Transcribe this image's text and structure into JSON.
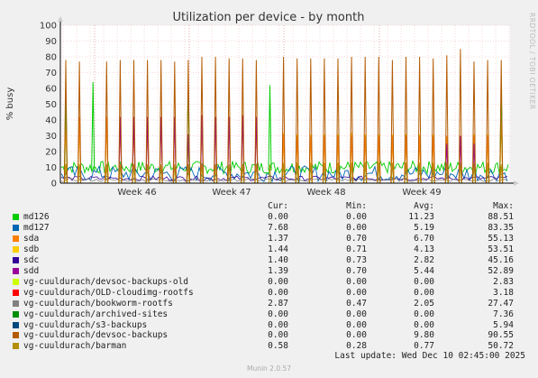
{
  "chart_data": {
    "type": "line",
    "title": "Utilization per device - by month",
    "ylabel": "% busy",
    "xlabel": "",
    "ylim": [
      0,
      100
    ],
    "yticks": [
      0,
      10,
      20,
      30,
      40,
      50,
      60,
      70,
      80,
      90,
      100
    ],
    "xticks": [
      "Week 46",
      "Week 47",
      "Week 48",
      "Week 49"
    ],
    "grid": true,
    "legend_position": "bottom",
    "series": [
      {
        "name": "md126",
        "color": "#00cc00",
        "cur": "0.00",
        "min": "0.00",
        "avg": "11.23",
        "max": "88.51"
      },
      {
        "name": "md127",
        "color": "#0066b3",
        "cur": "7.68",
        "min": "0.00",
        "avg": "5.19",
        "max": "83.35"
      },
      {
        "name": "sda",
        "color": "#ff8000",
        "cur": "1.37",
        "min": "0.70",
        "avg": "6.70",
        "max": "55.13"
      },
      {
        "name": "sdb",
        "color": "#ffcc00",
        "cur": "1.44",
        "min": "0.71",
        "avg": "4.13",
        "max": "53.51"
      },
      {
        "name": "sdc",
        "color": "#330099",
        "cur": "1.40",
        "min": "0.73",
        "avg": "2.82",
        "max": "45.16"
      },
      {
        "name": "sdd",
        "color": "#990099",
        "cur": "1.39",
        "min": "0.70",
        "avg": "5.44",
        "max": "52.89"
      },
      {
        "name": "vg-cuuldurach/devsoc-backups-old",
        "color": "#ccff00",
        "cur": "0.00",
        "min": "0.00",
        "avg": "0.00",
        "max": "2.83"
      },
      {
        "name": "vg-cuuldurach/OLD-cloudimg-rootfs",
        "color": "#ff0000",
        "cur": "0.00",
        "min": "0.00",
        "avg": "0.00",
        "max": "3.18"
      },
      {
        "name": "vg-cuuldurach/bookworm-rootfs",
        "color": "#808080",
        "cur": "2.87",
        "min": "0.47",
        "avg": "2.05",
        "max": "27.47"
      },
      {
        "name": "vg-cuuldurach/archived-sites",
        "color": "#008f00",
        "cur": "0.00",
        "min": "0.00",
        "avg": "0.00",
        "max": "7.36"
      },
      {
        "name": "vg-cuuldurach/s3-backups",
        "color": "#00487d",
        "cur": "0.00",
        "min": "0.00",
        "avg": "0.00",
        "max": "5.94"
      },
      {
        "name": "vg-cuuldurach/devsoc-backups",
        "color": "#b35a00",
        "cur": "0.00",
        "min": "0.00",
        "avg": "9.80",
        "max": "90.55"
      },
      {
        "name": "vg-cuuldurach/barman",
        "color": "#b38f00",
        "cur": "0.58",
        "min": "0.28",
        "avg": "0.77",
        "max": "50.72"
      }
    ]
  },
  "legend_header": {
    "cur": "Cur:",
    "min": "Min:",
    "avg": "Avg:",
    "max": "Max:"
  },
  "last_update": "Last update: Wed Dec 10 02:45:00 2025",
  "footer": "Munin 2.0.57",
  "side_label": "RRDTOOL / TOBI OETIKER"
}
